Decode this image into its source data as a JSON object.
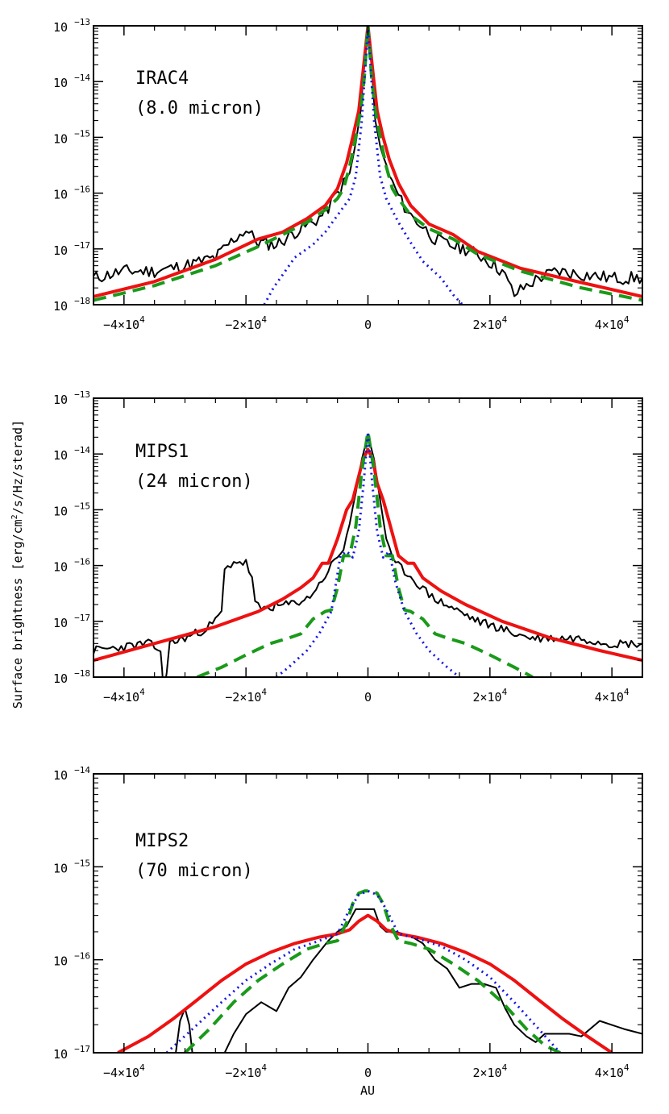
{
  "figure": {
    "ylabel_pre": "Surface brightness [erg/cm",
    "ylabel_sup": "2",
    "ylabel_post": "/s/Hz/sterad]",
    "xlabel": "AU"
  },
  "colors": {
    "observed": "#000000",
    "model_total": "#ee1111",
    "model_dashed": "#1a9a1a",
    "model_dotted": "#1414e6"
  },
  "chart_data": [
    {
      "type": "line",
      "annotation_line1": "IRAC4",
      "annotation_line2": "(8.0 micron)",
      "xlim": [
        -45000,
        45000
      ],
      "ylim": [
        1e-18,
        1e-13
      ],
      "yscale": "log",
      "x_ticks": [
        -40000,
        -20000,
        0,
        20000,
        40000
      ],
      "x_tick_labels": [
        {
          "mant": "−4×10",
          "exp": "4"
        },
        {
          "mant": "−2×10",
          "exp": "4"
        },
        {
          "mant": "0",
          "exp": ""
        },
        {
          "mant": "2×10",
          "exp": "4"
        },
        {
          "mant": "4×10",
          "exp": "4"
        }
      ],
      "y_ticks": [
        -18,
        -17,
        -16,
        -15,
        -14,
        -13
      ],
      "y_tick_labels": [
        "10",
        "10",
        "10",
        "10",
        "10",
        "10"
      ],
      "y_tick_exps": [
        "−18",
        "−17",
        "−16",
        "−15",
        "−14",
        "−13"
      ],
      "series": [
        {
          "style": "observed",
          "noise": 0.12,
          "seed": 11,
          "x": [
            -45000,
            -40000,
            -35000,
            -30000,
            -25000,
            -22000,
            -20000,
            -18000,
            -15000,
            -12000,
            -9000,
            -7000,
            -5000,
            -3000,
            -2000,
            -1200,
            -600,
            0,
            600,
            1200,
            2000,
            3000,
            4000,
            5500,
            7000,
            9000,
            11000,
            13000,
            16000,
            19000,
            22000,
            24000,
            26000,
            28000,
            31000,
            35000,
            40000,
            45000
          ],
          "y": [
            3e-18,
            4e-18,
            4e-18,
            5e-18,
            7e-18,
            1.5e-17,
            2.2e-17,
            1.3e-17,
            1.2e-17,
            2e-17,
            3e-17,
            4.5e-17,
            1e-16,
            2.2e-16,
            8e-16,
            3e-15,
            2e-14,
            1e-13,
            2e-14,
            2e-15,
            7e-16,
            3e-16,
            1.5e-16,
            7e-17,
            4e-17,
            2.5e-17,
            1.5e-17,
            1.2e-17,
            1e-17,
            7e-18,
            4e-18,
            1.5e-18,
            2.2e-18,
            3e-18,
            4e-18,
            3.5e-18,
            3e-18,
            3e-18
          ]
        },
        {
          "style": "model_total",
          "x": [
            -45000,
            -35000,
            -25000,
            -18000,
            -14000,
            -10000,
            -7000,
            -5000,
            -3500,
            -2500,
            -1500,
            -800,
            0,
            800,
            1500,
            2500,
            3500,
            5000,
            7000,
            10000,
            14000,
            18000,
            25000,
            35000,
            45000
          ],
          "y": [
            1.4e-18,
            2.6e-18,
            6.5e-18,
            1.5e-17,
            2e-17,
            3.5e-17,
            6e-17,
            1.2e-16,
            3.5e-16,
            1e-15,
            3e-15,
            1.5e-14,
            1e-13,
            1.5e-14,
            3e-15,
            1e-15,
            4e-16,
            1.5e-16,
            6e-17,
            2.8e-17,
            1.8e-17,
            9e-18,
            4.5e-18,
            2.5e-18,
            1.4e-18
          ]
        },
        {
          "style": "model_dashed",
          "x": [
            -45000,
            -35000,
            -25000,
            -18000,
            -14000,
            -10000,
            -7000,
            -5000,
            -4000,
            -3000,
            -2000,
            -1200,
            -600,
            0,
            600,
            1200,
            2000,
            3000,
            4000,
            5000,
            7000,
            10000,
            14000,
            18000,
            25000,
            35000,
            45000
          ],
          "y": [
            1.2e-18,
            2.2e-18,
            5e-18,
            1.1e-17,
            1.8e-17,
            3e-17,
            5e-17,
            8e-17,
            1.2e-16,
            3e-16,
            1e-15,
            3e-15,
            1.2e-14,
            1e-13,
            1.2e-14,
            3e-15,
            1e-15,
            3e-16,
            1.2e-16,
            8e-17,
            4e-17,
            2.3e-17,
            1.5e-17,
            8e-18,
            4e-18,
            2e-18,
            1.2e-18
          ]
        },
        {
          "style": "model_dotted",
          "x": [
            -17000,
            -15500,
            -12000,
            -9000,
            -7000,
            -5000,
            -3000,
            -2000,
            -1000,
            0,
            1000,
            2000,
            3000,
            5000,
            7000,
            9000,
            12000,
            14000,
            15500
          ],
          "y": [
            1e-18,
            2e-18,
            7e-18,
            1.2e-17,
            2e-17,
            4e-17,
            8e-17,
            2e-16,
            2e-15,
            1e-13,
            2e-15,
            2e-16,
            8e-17,
            3e-17,
            1.3e-17,
            6e-18,
            3e-18,
            1.5e-18,
            1e-18
          ]
        }
      ]
    },
    {
      "type": "line",
      "annotation_line1": "MIPS1",
      "annotation_line2": "(24 micron)",
      "xlim": [
        -45000,
        45000
      ],
      "ylim": [
        1e-18,
        1e-13
      ],
      "yscale": "log",
      "x_ticks": [
        -40000,
        -20000,
        0,
        20000,
        40000
      ],
      "x_tick_labels": [
        {
          "mant": "−4×10",
          "exp": "4"
        },
        {
          "mant": "−2×10",
          "exp": "4"
        },
        {
          "mant": "0",
          "exp": ""
        },
        {
          "mant": "2×10",
          "exp": "4"
        },
        {
          "mant": "4×10",
          "exp": "4"
        }
      ],
      "y_ticks": [
        -18,
        -17,
        -16,
        -15,
        -14,
        -13
      ],
      "y_tick_labels": [
        "10",
        "10",
        "10",
        "10",
        "10",
        "10"
      ],
      "y_tick_exps": [
        "−18",
        "−17",
        "−16",
        "−15",
        "−14",
        "−13"
      ],
      "series": [
        {
          "style": "observed",
          "noise": 0.08,
          "seed": 23,
          "x": [
            -45000,
            -40000,
            -36000,
            -34000,
            -33500,
            -32500,
            -30000,
            -27000,
            -25000,
            -24000,
            -23500,
            -22000,
            -20000,
            -19000,
            -18500,
            -17500,
            -16000,
            -13000,
            -10000,
            -8000,
            -6000,
            -4000,
            -3000,
            -2000,
            -1000,
            0,
            1000,
            2000,
            3000,
            4000,
            6000,
            8000,
            10000,
            12000,
            15000,
            18000,
            21000,
            24000,
            27000,
            30000,
            35000,
            40000,
            45000
          ],
          "y": [
            3e-18,
            3.5e-18,
            4e-18,
            3e-18,
            5e-19,
            4e-18,
            5e-18,
            7e-18,
            1e-17,
            1.5e-17,
            8e-17,
            1.2e-16,
            1.1e-16,
            6e-17,
            2e-17,
            1.7e-17,
            1.8e-17,
            2e-17,
            2.5e-17,
            4.5e-17,
            1e-16,
            2e-16,
            6e-16,
            2e-15,
            8e-15,
            2.2e-14,
            8e-15,
            1.5e-15,
            3e-16,
            1.2e-16,
            8e-17,
            5e-17,
            3e-17,
            2.2e-17,
            1.5e-17,
            1e-17,
            8e-18,
            6e-18,
            5e-18,
            5e-18,
            5e-18,
            4e-18,
            4e-18
          ]
        },
        {
          "style": "model_total",
          "x": [
            -45000,
            -35000,
            -25000,
            -18000,
            -14000,
            -11000,
            -9000,
            -7500,
            -6500,
            -5000,
            -3500,
            -2500,
            -1500,
            -800,
            0,
            800,
            1500,
            2500,
            3500,
            5000,
            6500,
            7500,
            9000,
            12000,
            16000,
            22000,
            30000,
            38000,
            45000
          ],
          "y": [
            2e-18,
            4e-18,
            8e-18,
            1.5e-17,
            2.5e-17,
            4e-17,
            6e-17,
            1.1e-16,
            1.1e-16,
            3e-16,
            1e-15,
            1.5e-15,
            4e-15,
            8e-15,
            1.2e-14,
            8e-15,
            3e-15,
            1.5e-15,
            6e-16,
            1.5e-16,
            1.1e-16,
            1.1e-16,
            6e-17,
            3.5e-17,
            2e-17,
            1e-17,
            5e-18,
            3e-18,
            2e-18
          ]
        },
        {
          "style": "model_dashed",
          "x": [
            -28000,
            -24000,
            -20000,
            -16000,
            -13000,
            -11000,
            -9000,
            -7000,
            -6000,
            -5000,
            -4000,
            -3000,
            -2000,
            -1000,
            0,
            1000,
            2000,
            3000,
            4000,
            5000,
            6000,
            7000,
            9000,
            11000,
            13000,
            16000,
            20000,
            24000,
            27000
          ],
          "y": [
            1e-18,
            1.5e-18,
            2.5e-18,
            4e-18,
            5e-18,
            6e-18,
            1.1e-17,
            1.5e-17,
            1.6e-17,
            4e-17,
            1.5e-16,
            1.5e-16,
            5e-16,
            5e-15,
            2.5e-14,
            5e-15,
            5e-16,
            1.5e-16,
            1.5e-16,
            4e-17,
            1.6e-17,
            1.5e-17,
            1.1e-17,
            6e-18,
            5e-18,
            4e-18,
            2.5e-18,
            1.5e-18,
            1e-18
          ]
        },
        {
          "style": "model_dotted",
          "x": [
            -15000,
            -13000,
            -10000,
            -8000,
            -6000,
            -4500,
            -3500,
            -2500,
            -1500,
            -700,
            0,
            700,
            1500,
            2500,
            3500,
            4500,
            6000,
            8000,
            10000,
            13000,
            15000
          ],
          "y": [
            1e-18,
            1.5e-18,
            3e-18,
            6e-18,
            1.5e-17,
            1.5e-16,
            1.8e-16,
            1.4e-16,
            4e-16,
            3e-15,
            2.5e-14,
            3e-15,
            4e-16,
            1.4e-16,
            1.8e-16,
            5e-17,
            1.5e-17,
            6e-18,
            3e-18,
            1.5e-18,
            1e-18
          ]
        }
      ]
    },
    {
      "type": "line",
      "annotation_line1": "MIPS2",
      "annotation_line2": "(70 micron)",
      "xlim": [
        -45000,
        45000
      ],
      "ylim": [
        1e-17,
        1e-14
      ],
      "yscale": "log",
      "x_ticks": [
        -40000,
        -20000,
        0,
        20000,
        40000
      ],
      "x_tick_labels": [
        {
          "mant": "−4×10",
          "exp": "4"
        },
        {
          "mant": "−2×10",
          "exp": "4"
        },
        {
          "mant": "0",
          "exp": ""
        },
        {
          "mant": "2×10",
          "exp": "4"
        },
        {
          "mant": "4×10",
          "exp": "4"
        }
      ],
      "y_ticks": [
        -17,
        -16,
        -15,
        -14
      ],
      "y_tick_labels": [
        "10",
        "10",
        "10",
        "10"
      ],
      "y_tick_exps": [
        "−17",
        "−16",
        "−15",
        "−14"
      ],
      "series": [
        {
          "style": "observed_a",
          "x": [
            -31500,
            -30800,
            -30000,
            -29300,
            -28800
          ],
          "y": [
            1e-17,
            2.2e-17,
            3e-17,
            2e-17,
            1e-17
          ]
        },
        {
          "style": "observed",
          "x": [
            -23500,
            -22000,
            -20000,
            -17500,
            -15000,
            -13000,
            -11000,
            -9000,
            -6500,
            -5000,
            -3500,
            -2000,
            -500,
            1000,
            2000,
            3000,
            4500,
            7000,
            9000,
            11000,
            13000,
            15000,
            17000,
            19000,
            21000,
            22500,
            24000,
            26000,
            27500,
            29000,
            31000,
            33000,
            35000,
            38000,
            42000,
            45000
          ],
          "y": [
            1e-17,
            1.6e-17,
            2.6e-17,
            3.5e-17,
            2.8e-17,
            5e-17,
            6.5e-17,
            1e-16,
            1.6e-16,
            2e-16,
            2.3e-16,
            3.5e-16,
            3.5e-16,
            3.5e-16,
            2.3e-16,
            2e-16,
            2e-16,
            1.8e-16,
            1.5e-16,
            1e-16,
            8e-17,
            5e-17,
            5.5e-17,
            5.5e-17,
            5e-17,
            3e-17,
            2e-17,
            1.5e-17,
            1.3e-17,
            1.6e-17,
            1.6e-17,
            1.6e-17,
            1.5e-17,
            2.2e-17,
            1.8e-17,
            1.6e-17
          ]
        },
        {
          "style": "model_total",
          "x": [
            -41000,
            -36000,
            -32000,
            -28000,
            -24000,
            -20000,
            -16000,
            -12000,
            -8000,
            -5000,
            -3000,
            -1500,
            0,
            1500,
            3000,
            5000,
            8000,
            12000,
            16000,
            20000,
            24000,
            28000,
            32000,
            36000,
            40000
          ],
          "y": [
            1e-17,
            1.5e-17,
            2.3e-17,
            3.7e-17,
            6e-17,
            9e-17,
            1.2e-16,
            1.5e-16,
            1.75e-16,
            1.9e-16,
            2.1e-16,
            2.6e-16,
            3e-16,
            2.6e-16,
            2.1e-16,
            1.9e-16,
            1.75e-16,
            1.5e-16,
            1.2e-16,
            9e-17,
            6e-17,
            3.7e-17,
            2.3e-17,
            1.5e-17,
            1e-17
          ]
        },
        {
          "style": "model_dashed",
          "x": [
            -30000,
            -26000,
            -22000,
            -18000,
            -14000,
            -10000,
            -7000,
            -5000,
            -3500,
            -2500,
            -1500,
            -500,
            0,
            500,
            1500,
            2500,
            3500,
            5000,
            7000,
            10000,
            14000,
            18000,
            22000,
            26000,
            29000,
            31500
          ],
          "y": [
            1e-17,
            1.8e-17,
            3.5e-17,
            6e-17,
            9e-17,
            1.3e-16,
            1.5e-16,
            1.6e-16,
            2.5e-16,
            4e-16,
            5.2e-16,
            5.5e-16,
            5.5e-16,
            5.5e-16,
            5.2e-16,
            4e-16,
            2.5e-16,
            1.6e-16,
            1.5e-16,
            1.3e-16,
            9e-17,
            6e-17,
            3.5e-17,
            1.8e-17,
            1.2e-17,
            1e-17
          ]
        },
        {
          "style": "model_dotted",
          "x": [
            -33000,
            -28000,
            -24000,
            -20000,
            -16000,
            -12000,
            -8000,
            -5000,
            -3000,
            -1500,
            0,
            1500,
            3000,
            5000,
            8000,
            12000,
            16000,
            20000,
            24000,
            28000,
            31500
          ],
          "y": [
            1e-17,
            2e-17,
            3.5e-17,
            6e-17,
            9e-17,
            1.3e-16,
            1.6e-16,
            1.9e-16,
            3.5e-16,
            5e-16,
            5.5e-16,
            5e-16,
            3.5e-16,
            1.9e-16,
            1.7e-16,
            1.4e-16,
            1e-16,
            6.5e-17,
            3.5e-17,
            1.8e-17,
            1e-17
          ]
        }
      ]
    }
  ]
}
